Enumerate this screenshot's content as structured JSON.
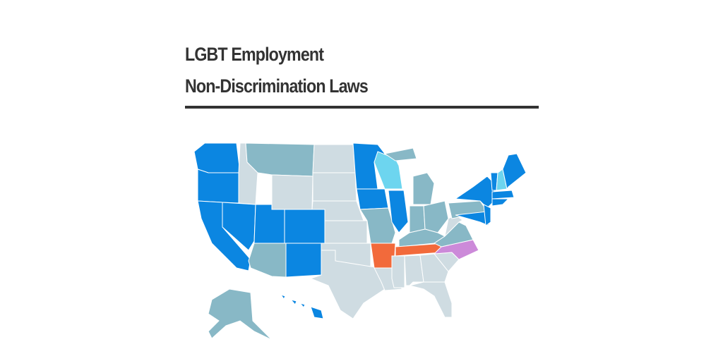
{
  "header": {
    "title_lines": [
      "LGBT Employment",
      "Non-Discrimination Laws"
    ]
  }
}
